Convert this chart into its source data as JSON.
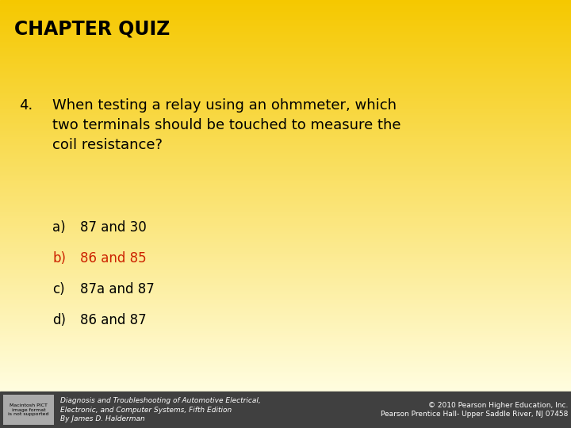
{
  "title": "CHAPTER QUIZ",
  "question_number": "4.",
  "question_text": "When testing a relay using an ohmmeter, which\ntwo terminals should be touched to measure the\ncoil resistance?",
  "answers": [
    {
      "label": "a)",
      "text": "87 and 30",
      "color": "#000000"
    },
    {
      "label": "b)",
      "text": "86 and 85",
      "color": "#cc2200"
    },
    {
      "label": "c)",
      "text": "87a and 87",
      "color": "#000000"
    },
    {
      "label": "d)",
      "text": "86 and 87",
      "color": "#000000"
    }
  ],
  "background_top": "#f5c800",
  "background_bottom": "#fffde0",
  "footer_bg": "#404040",
  "footer_left": "Diagnosis and Troubleshooting of Automotive Electrical,\nElectronic, and Computer Systems, Fifth Edition\nBy James D. Halderman",
  "footer_right": "© 2010 Pearson Higher Education, Inc.\nPearson Prentice Hall- Upper Saddle River, NJ 07458",
  "title_fontsize": 17,
  "question_fontsize": 13,
  "answer_fontsize": 12,
  "footer_fontsize": 6.5
}
